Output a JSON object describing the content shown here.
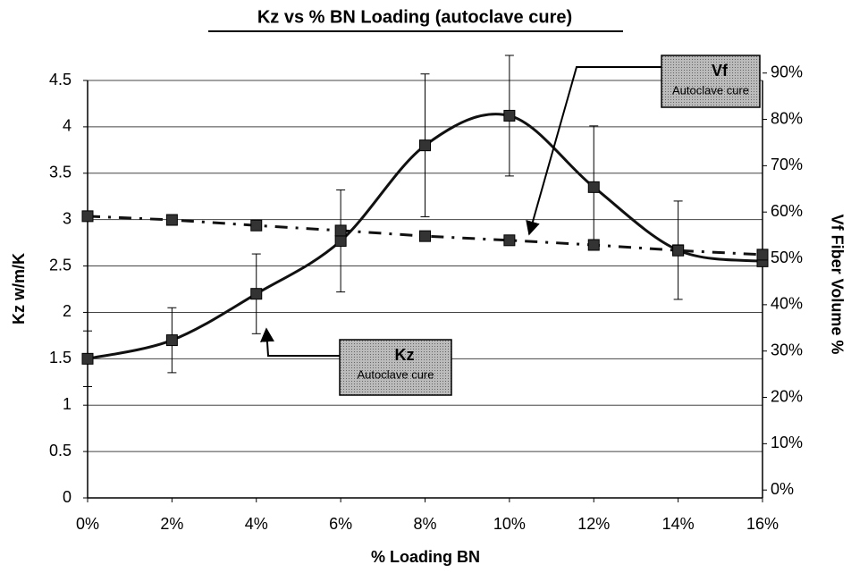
{
  "chart_data": {
    "type": "line",
    "title": "Kz vs % BN Loading (autoclave cure)",
    "xlabel": "% Loading BN",
    "ylabel": "Kz w/m/K",
    "y2label": "Vf Fiber Volume %",
    "x": [
      0,
      2,
      4,
      6,
      8,
      10,
      12,
      14,
      16
    ],
    "xlim": [
      0,
      16
    ],
    "xticks": [
      {
        "value": 0,
        "label": "0%"
      },
      {
        "value": 2,
        "label": "2%"
      },
      {
        "value": 4,
        "label": "4%"
      },
      {
        "value": 6,
        "label": "6%"
      },
      {
        "value": 8,
        "label": "8%"
      },
      {
        "value": 10,
        "label": "10%"
      },
      {
        "value": 12,
        "label": "12%"
      },
      {
        "value": 14,
        "label": "14%"
      },
      {
        "value": 16,
        "label": "16%"
      }
    ],
    "ylim": [
      0,
      4.5
    ],
    "yticks": [
      0,
      0.5,
      1,
      1.5,
      2,
      2.5,
      3,
      3.5,
      4,
      4.5
    ],
    "y2lim": [
      -1.7,
      88.4
    ],
    "y2ticks": [
      {
        "value": 0,
        "label": "0%"
      },
      {
        "value": 10,
        "label": "10%"
      },
      {
        "value": 20,
        "label": "20%"
      },
      {
        "value": 30,
        "label": "30%"
      },
      {
        "value": 40,
        "label": "40%"
      },
      {
        "value": 50,
        "label": "50%"
      },
      {
        "value": 60,
        "label": "60%"
      },
      {
        "value": 70,
        "label": "70%"
      },
      {
        "value": 80,
        "label": "80%"
      },
      {
        "value": 90,
        "label": "90%"
      }
    ],
    "grid": true,
    "series": [
      {
        "name": "Kz",
        "color": "#111111",
        "values": [
          1.5,
          1.7,
          2.2,
          2.77,
          3.8,
          4.12,
          3.35,
          2.67,
          2.55
        ],
        "errors": [
          0.3,
          0.35,
          0.43,
          0.55,
          0.77,
          0.65,
          0.66,
          0.53,
          0
        ],
        "smooth": true,
        "dashed": false
      },
      {
        "name": "Vf",
        "color": "#111111",
        "values": [
          59.1,
          58.3,
          57.1,
          56,
          54.8,
          53.9,
          52.9,
          51.7,
          50.8
        ],
        "axis": "y2",
        "smooth": false,
        "dashed": true
      }
    ],
    "annotations": [
      {
        "title": "Vf",
        "subtitle": "Autoclave cure"
      },
      {
        "title": "Kz",
        "subtitle": "Autoclave cure"
      }
    ]
  }
}
